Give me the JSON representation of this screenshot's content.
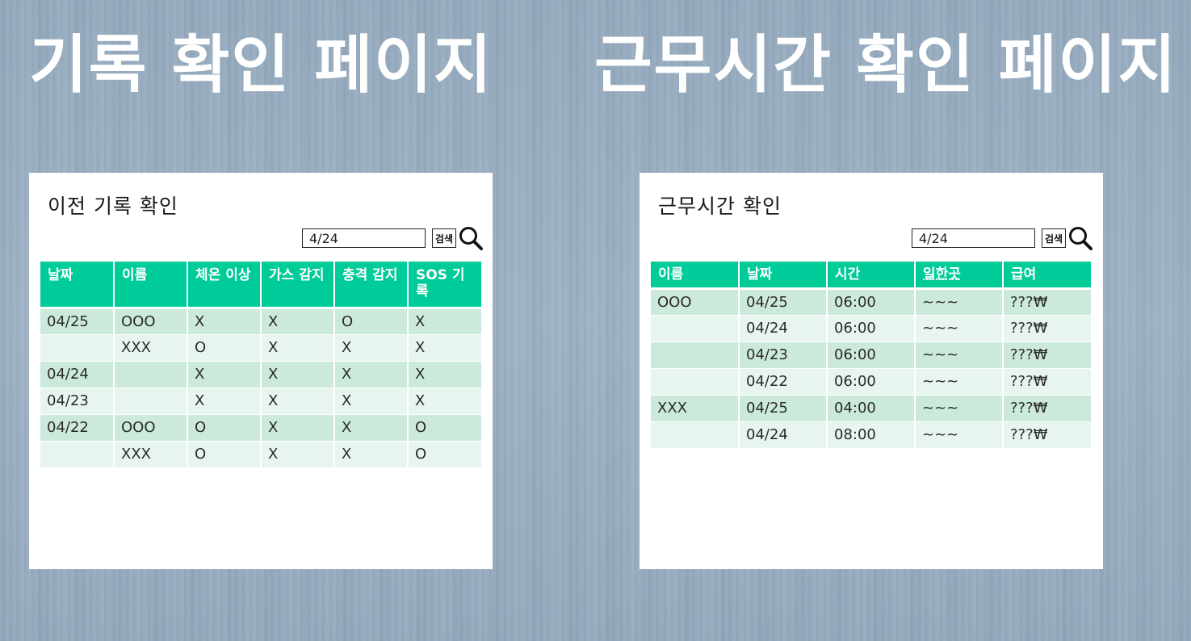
{
  "titles": {
    "left": "기록 확인 페이지",
    "right": "근무시간 확인 페이지"
  },
  "records": {
    "heading": "이전 기록 확인",
    "search": {
      "value": "4/24",
      "button_label": "검색"
    },
    "columns": [
      "날짜",
      "이름",
      "체온 이상",
      "가스 감지",
      "충격 감지",
      "SOS 기록"
    ],
    "rows": [
      [
        "04/25",
        "OOO",
        "X",
        "X",
        "O",
        "X"
      ],
      [
        "",
        "XXX",
        "O",
        "X",
        "X",
        "X"
      ],
      [
        "04/24",
        "",
        "X",
        "X",
        "X",
        "X"
      ],
      [
        "04/23",
        "",
        "X",
        "X",
        "X",
        "X"
      ],
      [
        "04/22",
        "OOO",
        "O",
        "X",
        "X",
        "O"
      ],
      [
        "",
        "XXX",
        "O",
        "X",
        "X",
        "O"
      ]
    ]
  },
  "worktime": {
    "heading": "근무시간 확인",
    "search": {
      "value": "4/24",
      "button_label": "검색"
    },
    "columns": [
      "이름",
      "날짜",
      "시간",
      "일한곳",
      "급여"
    ],
    "rows": [
      [
        "OOO",
        "04/25",
        "06:00",
        "~~~",
        "???₩"
      ],
      [
        "",
        "04/24",
        "06:00",
        "~~~",
        "???₩"
      ],
      [
        "",
        "04/23",
        "06:00",
        "~~~",
        "???₩"
      ],
      [
        "",
        "04/22",
        "06:00",
        "~~~",
        "???₩"
      ],
      [
        "XXX",
        "04/25",
        "04:00",
        "~~~",
        "???₩"
      ],
      [
        "",
        "04/24",
        "08:00",
        "~~~",
        "???₩"
      ]
    ]
  },
  "icons": {
    "search": "magnifier-icon"
  },
  "colors": {
    "header": "#00cc99",
    "row_odd": "#cceadb",
    "row_even": "#e7f5ee"
  }
}
